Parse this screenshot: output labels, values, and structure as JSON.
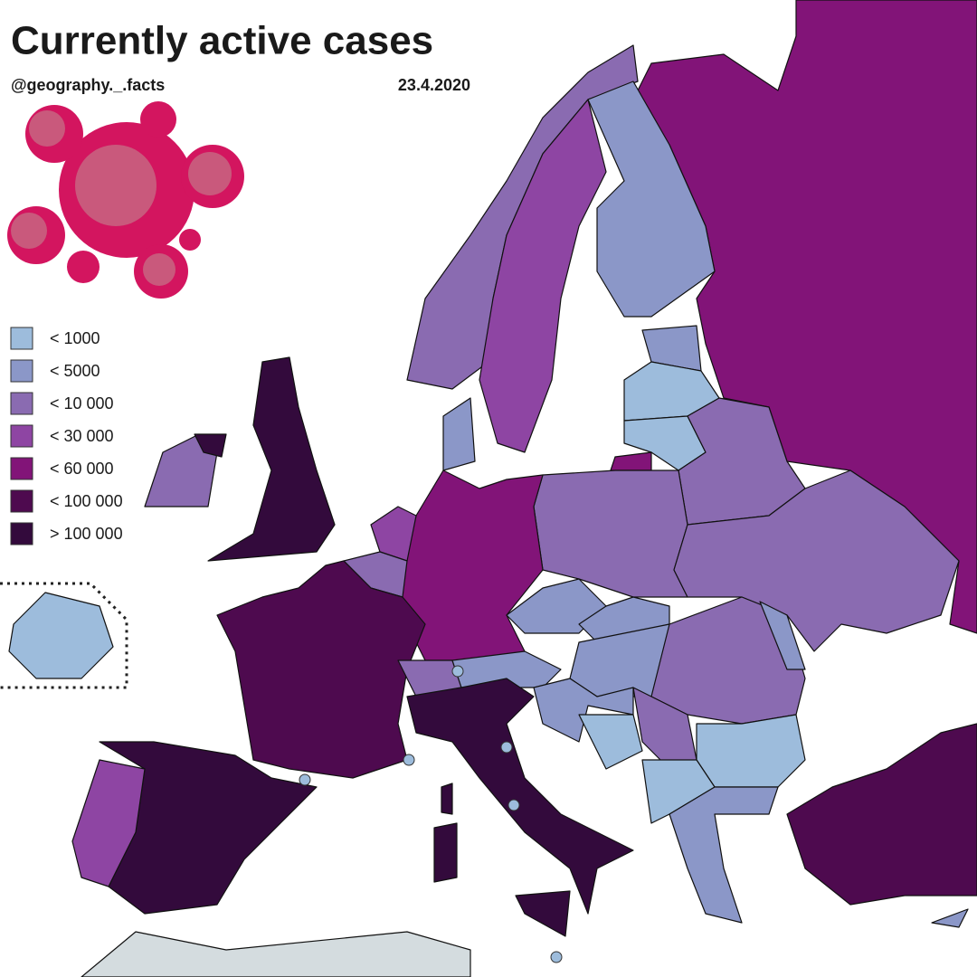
{
  "header": {
    "title": "Currently active cases",
    "handle": "@geography._.facts",
    "date": "23.4.2020"
  },
  "legend": {
    "items": [
      {
        "label": "< 1000",
        "color": "#9dbcdc"
      },
      {
        "label": "< 5000",
        "color": "#8b97c8"
      },
      {
        "label": "< 10 000",
        "color": "#8a6bb1"
      },
      {
        "label": "< 30 000",
        "color": "#8e45a3"
      },
      {
        "label": "< 60 000",
        "color": "#821478"
      },
      {
        "label": "< 100 000",
        "color": "#4e0a4f"
      },
      {
        "label": "> 100 000",
        "color": "#330a3c"
      }
    ]
  }
}
